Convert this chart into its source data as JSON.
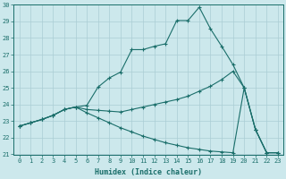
{
  "xlabel": "Humidex (Indice chaleur)",
  "xlim": [
    -0.5,
    23.5
  ],
  "ylim": [
    21,
    30
  ],
  "xticks": [
    0,
    1,
    2,
    3,
    4,
    5,
    6,
    7,
    8,
    9,
    10,
    11,
    12,
    13,
    14,
    15,
    16,
    17,
    18,
    19,
    20,
    21,
    22,
    23
  ],
  "yticks": [
    21,
    22,
    23,
    24,
    25,
    26,
    27,
    28,
    29,
    30
  ],
  "bg_color": "#cce8ec",
  "line_color": "#1a6e6a",
  "grid_color": "#aacdd4",
  "line1_x": [
    0,
    1,
    2,
    3,
    4,
    5,
    6,
    7,
    8,
    9,
    10,
    11,
    12,
    13,
    14,
    15,
    16,
    17,
    18,
    19,
    20,
    21,
    22,
    23
  ],
  "line1_y": [
    22.7,
    22.9,
    23.1,
    23.35,
    23.7,
    23.85,
    23.95,
    25.05,
    25.6,
    25.95,
    27.3,
    27.3,
    27.5,
    27.65,
    29.05,
    29.05,
    29.85,
    28.55,
    27.5,
    26.4,
    25.0,
    22.5,
    21.1,
    21.1
  ],
  "line2_x": [
    0,
    1,
    2,
    3,
    4,
    5,
    6,
    7,
    8,
    9,
    10,
    11,
    12,
    13,
    14,
    15,
    16,
    17,
    18,
    19,
    20,
    21,
    22,
    23
  ],
  "line2_y": [
    22.7,
    22.9,
    23.1,
    23.35,
    23.7,
    23.85,
    23.7,
    23.65,
    23.6,
    23.55,
    23.7,
    23.85,
    24.0,
    24.15,
    24.3,
    24.5,
    24.8,
    25.1,
    25.5,
    26.0,
    25.0,
    22.5,
    21.1,
    21.1
  ],
  "line3_x": [
    0,
    1,
    2,
    3,
    4,
    5,
    6,
    7,
    8,
    9,
    10,
    11,
    12,
    13,
    14,
    15,
    16,
    17,
    18,
    19,
    20,
    21,
    22,
    23
  ],
  "line3_y": [
    22.7,
    22.9,
    23.1,
    23.35,
    23.7,
    23.85,
    23.5,
    23.2,
    22.9,
    22.6,
    22.35,
    22.1,
    21.9,
    21.7,
    21.55,
    21.4,
    21.3,
    21.2,
    21.15,
    21.1,
    25.0,
    22.5,
    21.1,
    21.1
  ]
}
